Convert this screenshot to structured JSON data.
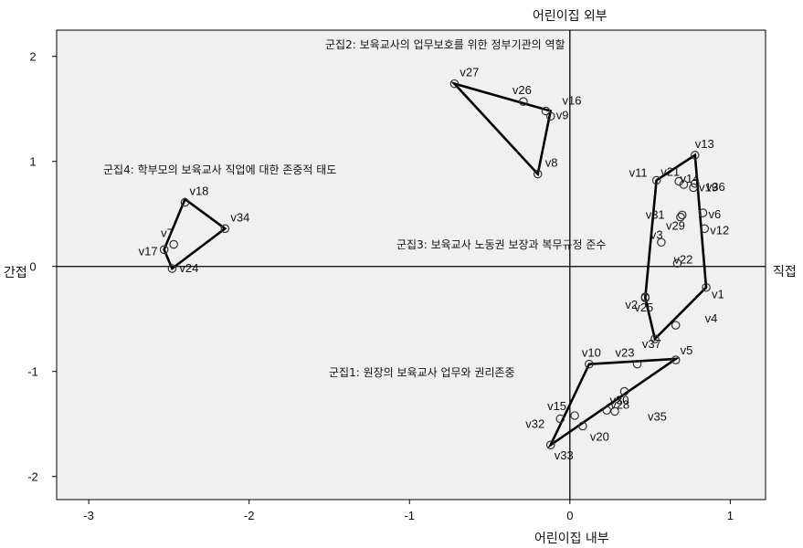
{
  "chart_data": {
    "type": "scatter",
    "title": "",
    "axis_labels": {
      "top": "어린이집 외부",
      "bottom": "어린이집 내부",
      "left": "간접",
      "right": "직접"
    },
    "xlim": [
      -3.2,
      1.22
    ],
    "ylim": [
      -2.22,
      2.25
    ],
    "x_ticks": [
      -3,
      -2,
      -1,
      0,
      1
    ],
    "y_ticks": [
      -2,
      -1,
      0,
      1,
      2
    ],
    "points": [
      {
        "label": "v1",
        "x": 0.85,
        "y": -0.2
      },
      {
        "label": "v2",
        "x": 0.47,
        "y": -0.3
      },
      {
        "label": "v3",
        "x": 0.57,
        "y": 0.23
      },
      {
        "label": "v4",
        "x": 0.66,
        "y": -0.56
      },
      {
        "label": "v5",
        "x": 0.66,
        "y": -0.89
      },
      {
        "label": "v6",
        "x": 0.83,
        "y": 0.51
      },
      {
        "label": "v8",
        "x": -0.2,
        "y": 0.88
      },
      {
        "label": "v9",
        "x": -0.12,
        "y": 1.43
      },
      {
        "label": "v10",
        "x": 0.12,
        "y": -0.93
      },
      {
        "label": "v11",
        "x": 0.54,
        "y": 0.82
      },
      {
        "label": "v12",
        "x": 0.84,
        "y": 0.36
      },
      {
        "label": "v13",
        "x": 0.78,
        "y": 1.06
      },
      {
        "label": "v14",
        "x": 0.71,
        "y": 0.78
      },
      {
        "label": "v15",
        "x": 0.03,
        "y": -1.42
      },
      {
        "label": "v16",
        "x": -0.15,
        "y": 1.48
      },
      {
        "label": "v17",
        "x": -2.53,
        "y": 0.16
      },
      {
        "label": "v18",
        "x": -2.4,
        "y": 0.61
      },
      {
        "label": "v19",
        "x": 0.77,
        "y": 0.75
      },
      {
        "label": "v20",
        "x": 0.08,
        "y": -1.52
      },
      {
        "label": "v21",
        "x": 0.68,
        "y": 0.81
      },
      {
        "label": "v22",
        "x": 0.67,
        "y": 0.03
      },
      {
        "label": "v23",
        "x": 0.42,
        "y": -0.93
      },
      {
        "label": "v24",
        "x": -2.48,
        "y": -0.02
      },
      {
        "label": "v25",
        "x": 0.47,
        "y": -0.29
      },
      {
        "label": "v26",
        "x": -0.29,
        "y": 1.57
      },
      {
        "label": "v27",
        "x": -0.72,
        "y": 1.74
      },
      {
        "label": "v28",
        "x": 0.23,
        "y": -1.37
      },
      {
        "label": "v29",
        "x": 0.69,
        "y": 0.47
      },
      {
        "label": "v30",
        "x": 0.34,
        "y": -1.19
      },
      {
        "label": "v31",
        "x": 0.7,
        "y": 0.49
      },
      {
        "label": "v32",
        "x": -0.06,
        "y": -1.45
      },
      {
        "label": "v33",
        "x": -0.12,
        "y": -1.7
      },
      {
        "label": "v34",
        "x": -2.15,
        "y": 0.36
      },
      {
        "label": "v35",
        "x": 0.28,
        "y": -1.38
      },
      {
        "label": "v36",
        "x": 0.78,
        "y": 0.79
      },
      {
        "label": "v37",
        "x": 0.53,
        "y": -0.69
      },
      {
        "label": "v7",
        "x": -2.47,
        "y": 0.21
      }
    ],
    "clusters": [
      {
        "name": "군집1: 원장의 보육교사 업무와 권리존중",
        "hull": [
          [
            0.12,
            -0.93
          ],
          [
            0.66,
            -0.88
          ],
          [
            -0.12,
            -1.7
          ]
        ]
      },
      {
        "name": "군집2: 보육교사의 업무보호를 위한 정부기관의 역할",
        "hull": [
          [
            -0.72,
            1.74
          ],
          [
            -0.12,
            1.48
          ],
          [
            -0.2,
            0.88
          ]
        ]
      },
      {
        "name": "군집3: 보육교사 노동권 보장과 복무규정 준수",
        "hull": [
          [
            0.78,
            1.06
          ],
          [
            0.85,
            -0.2
          ],
          [
            0.53,
            -0.69
          ],
          [
            0.47,
            -0.3
          ],
          [
            0.54,
            0.82
          ]
        ]
      },
      {
        "name": "군집4: 학부모의 보육교사 직업에 대한 존중적 태도",
        "hull": [
          [
            -2.4,
            0.64
          ],
          [
            -2.15,
            0.36
          ],
          [
            -2.48,
            -0.02
          ],
          [
            -2.53,
            0.16
          ]
        ]
      }
    ]
  }
}
